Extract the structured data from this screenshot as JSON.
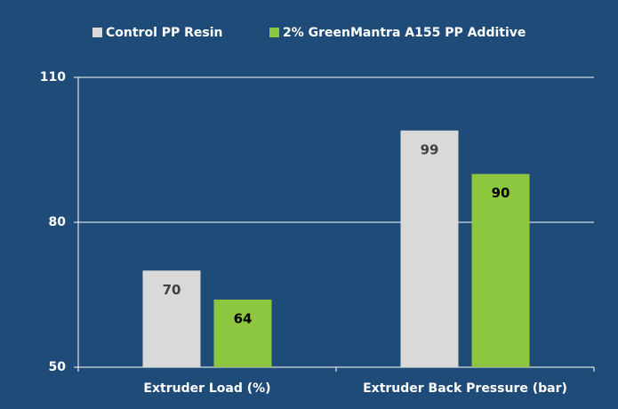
{
  "chart_data": {
    "type": "bar",
    "categories": [
      "Extruder Load (%)",
      "Extruder Back Pressure (bar)"
    ],
    "series": [
      {
        "name": "Control PP Resin",
        "color": "#d9d9d9",
        "label_color": "#404040",
        "values": [
          70,
          99
        ]
      },
      {
        "name": "2% GreenMantra A155 PP Additive",
        "color": "#8dc63f",
        "label_color": "#000000",
        "values": [
          64,
          90
        ]
      }
    ],
    "ylim": [
      50,
      110
    ],
    "yticks": [
      50,
      80,
      110
    ],
    "grid": true,
    "legend": "top"
  }
}
